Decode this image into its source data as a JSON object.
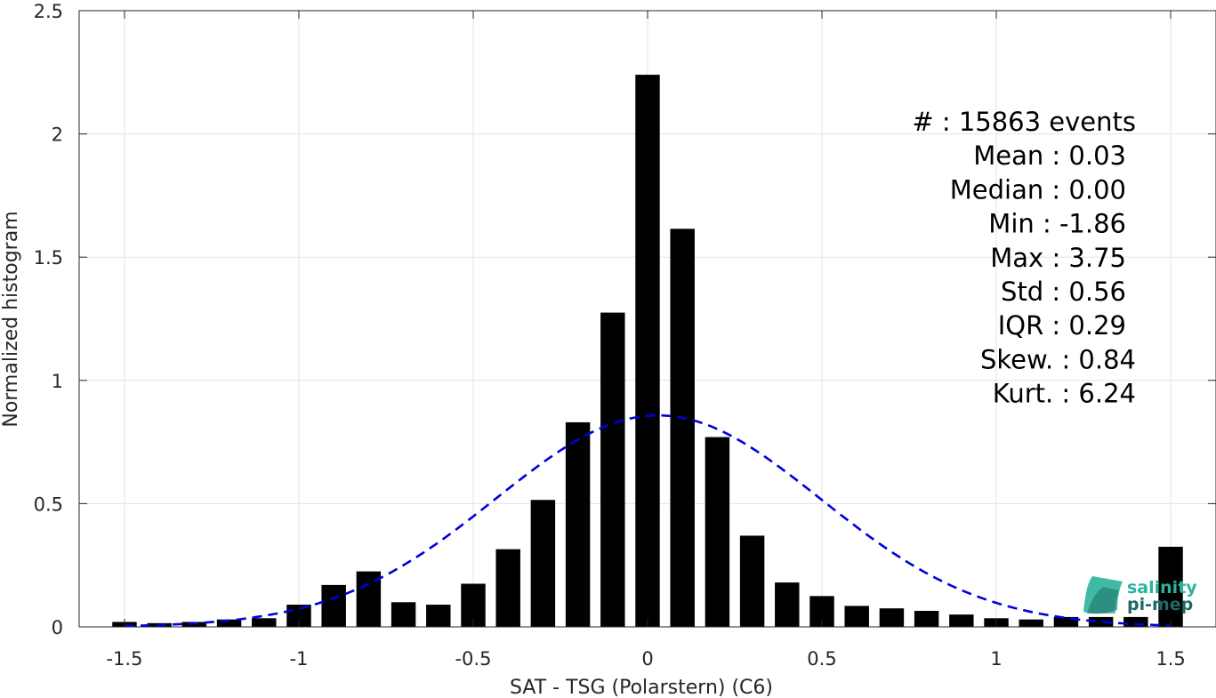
{
  "chart_data": {
    "type": "bar",
    "xlabel": "SAT - TSG (Polarstern) (C6)",
    "ylabel": "Normalized histogram",
    "xlim": [
      -1.63,
      1.63
    ],
    "ylim": [
      0,
      2.5
    ],
    "grid": true,
    "x_ticks": [
      -1.5,
      -1,
      -0.5,
      0,
      0.5,
      1,
      1.5
    ],
    "x_tick_labels": [
      "-1.5",
      "-1",
      "-0.5",
      "0",
      "0.5",
      "1",
      "1.5"
    ],
    "y_ticks": [
      0,
      0.5,
      1,
      1.5,
      2,
      2.5
    ],
    "y_tick_labels": [
      "0",
      "0.5",
      "1",
      "1.5",
      "2",
      "2.5"
    ],
    "bin_width": 0.1,
    "bar_width": 0.07,
    "x": [
      -1.5,
      -1.4,
      -1.3,
      -1.2,
      -1.1,
      -1.0,
      -0.9,
      -0.8,
      -0.7,
      -0.6,
      -0.5,
      -0.4,
      -0.3,
      -0.2,
      -0.1,
      0.0,
      0.1,
      0.2,
      0.3,
      0.4,
      0.5,
      0.6,
      0.7,
      0.8,
      0.9,
      1.0,
      1.1,
      1.2,
      1.3,
      1.4,
      1.5
    ],
    "values": [
      0.02,
      0.015,
      0.02,
      0.03,
      0.035,
      0.09,
      0.17,
      0.225,
      0.1,
      0.09,
      0.175,
      0.315,
      0.515,
      0.83,
      1.275,
      2.24,
      1.615,
      0.77,
      0.37,
      0.18,
      0.125,
      0.085,
      0.075,
      0.065,
      0.05,
      0.035,
      0.03,
      0.04,
      0.04,
      0.04,
      0.325
    ],
    "bar_color": "#000000",
    "fit": {
      "type": "normal-pdf",
      "mean": 0.03,
      "std": 0.465,
      "color": "#0000e0",
      "style": "dashed"
    },
    "stats_lines": [
      "#  : 15863 events",
      "Mean : 0.03",
      "Median : 0.00",
      "Min : -1.86",
      "Max : 3.75",
      "Std : 0.56",
      "IQR : 0.29",
      "Skew. : 0.84",
      "Kurt. : 6.24"
    ]
  },
  "logo": {
    "line1": "salinity",
    "line2": "pi-mep",
    "color_top": "#2bb39b",
    "color_bottom": "#1d6b66"
  }
}
